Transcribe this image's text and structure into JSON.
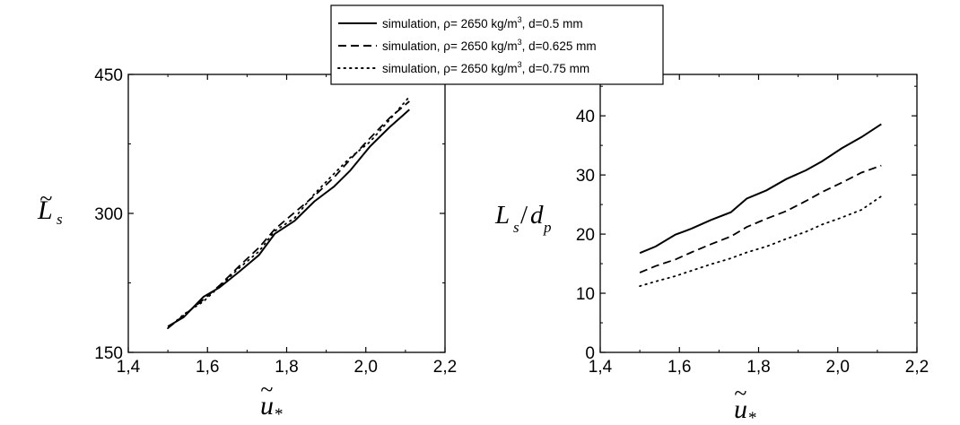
{
  "chart_data": [
    {
      "type": "line",
      "x": [
        1.5,
        1.54,
        1.59,
        1.63,
        1.68,
        1.73,
        1.77,
        1.82,
        1.87,
        1.92,
        1.96,
        2.01,
        2.06,
        2.11
      ],
      "series": [
        {
          "name": "simulation, ρ= 2650 kg/m³, d=0.5 mm",
          "style": "solid",
          "values": [
            178,
            188,
            210,
            220,
            237,
            255,
            278,
            292,
            313,
            329,
            346,
            372,
            393,
            412
          ]
        },
        {
          "name": "simulation, ρ= 2650 kg/m³, d=0.625 mm",
          "style": "dashed",
          "values": [
            176,
            190,
            207,
            222,
            243,
            263,
            283,
            301,
            319,
            339,
            358,
            381,
            403,
            421
          ]
        },
        {
          "name": "simulation, ρ= 2650 kg/m³, d=0.75 mm",
          "style": "dotted",
          "values": [
            176,
            191,
            205,
            221,
            241,
            259,
            281,
            295,
            321,
            343,
            360,
            377,
            401,
            426
          ]
        }
      ],
      "xlim": [
        1.4,
        2.2
      ],
      "ylim": [
        150,
        450
      ],
      "xticks": [
        "1,4",
        "1,6",
        "1,8",
        "2,0",
        "2,2"
      ],
      "yticks": [
        "150",
        "300",
        "450"
      ],
      "xlabel": "ũ*",
      "ylabel": "L̃s"
    },
    {
      "type": "line",
      "x": [
        1.5,
        1.54,
        1.59,
        1.63,
        1.68,
        1.73,
        1.77,
        1.82,
        1.87,
        1.92,
        1.96,
        2.01,
        2.06,
        2.11
      ],
      "series": [
        {
          "name": "simulation, ρ= 2650 kg/m³, d=0.5 mm",
          "style": "solid",
          "values": [
            16.8,
            17.9,
            19.9,
            20.9,
            22.4,
            23.7,
            26.0,
            27.4,
            29.3,
            30.8,
            32.3,
            34.5,
            36.4,
            38.6
          ]
        },
        {
          "name": "simulation, ρ= 2650 kg/m³, d=0.625 mm",
          "style": "dashed",
          "values": [
            13.5,
            14.6,
            15.7,
            16.9,
            18.3,
            19.6,
            21.2,
            22.6,
            23.9,
            25.6,
            27.1,
            28.7,
            30.4,
            31.6
          ]
        },
        {
          "name": "simulation, ρ= 2650 kg/m³, d=0.75 mm",
          "style": "dotted",
          "values": [
            11.2,
            12.0,
            12.9,
            13.8,
            14.9,
            15.9,
            16.9,
            17.9,
            19.2,
            20.4,
            21.6,
            22.8,
            24.1,
            26.4
          ]
        }
      ],
      "xlim": [
        1.4,
        2.2
      ],
      "ylim": [
        0,
        47
      ],
      "xticks": [
        "1,4",
        "1,6",
        "1,8",
        "2,0",
        "2,2"
      ],
      "yticks": [
        "0",
        "10",
        "20",
        "30",
        "40"
      ],
      "xlabel": "ũ*",
      "ylabel": "Ls/dp"
    }
  ],
  "legend": {
    "placement": "top-center",
    "items": [
      {
        "prefix": "simulation, ρ= 2650 kg/m",
        "sup": "3",
        "suffix": ", d=0.5 mm"
      },
      {
        "prefix": "simulation, ρ= 2650 kg/m",
        "sup": "3",
        "suffix": ", d=0.625 mm"
      },
      {
        "prefix": "simulation, ρ= 2650 kg/m",
        "sup": "3",
        "suffix": ", d=0.75 mm"
      }
    ]
  }
}
